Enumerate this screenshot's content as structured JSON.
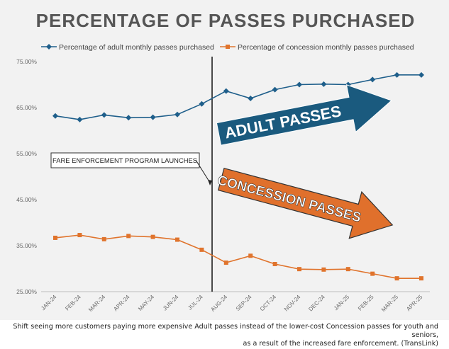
{
  "chart_data": {
    "type": "line",
    "title": "PERCENTAGE OF PASSES PURCHASED",
    "categories": [
      "JAN-24",
      "FEB-24",
      "MAR-24",
      "APR-24",
      "MAY-24",
      "JUN-24",
      "JUL-24",
      "AUG-24",
      "SEP-24",
      "OCT-24",
      "NOV-24",
      "DEC-24",
      "JAN-25",
      "FEB-25",
      "MAR-25",
      "APR-25"
    ],
    "series": [
      {
        "name": "Percentage of adult monthly passes purchased",
        "color": "#1f5f8b",
        "marker": "diamond",
        "values": [
          63.2,
          62.4,
          63.4,
          62.8,
          62.9,
          63.5,
          65.8,
          68.6,
          67.0,
          68.9,
          70.0,
          70.1,
          70.0,
          71.1,
          72.1,
          72.1
        ]
      },
      {
        "name": "Percentage of concession monthly passes purchased",
        "color": "#e0742d",
        "marker": "square",
        "values": [
          36.7,
          37.3,
          36.4,
          37.1,
          36.9,
          36.3,
          34.1,
          31.3,
          32.8,
          31.0,
          29.9,
          29.8,
          29.9,
          28.9,
          27.9,
          27.9
        ]
      }
    ],
    "yticks": [
      "75.00%",
      "65.00%",
      "55.00%",
      "45.00%",
      "35.00%",
      "25.00%"
    ],
    "ylim": [
      25,
      75
    ],
    "legend_position": "top",
    "grid": false,
    "annotations": {
      "event_label": "FARE ENFORCEMENT PROGRAM LAUNCHES",
      "adult_arrow_label": "ADULT PASSES",
      "concession_arrow_label": "CONCESSION PASSES",
      "adult_arrow_color": "#1a5a7e",
      "concession_arrow_color": "#e0702c"
    }
  },
  "caption": {
    "line1": "Shift seeing more customers paying more expensive Adult passes instead of the lower-cost Concession passes for youth and seniors,",
    "line2": "as a result of the increased fare enforcement. (TransLink)"
  }
}
